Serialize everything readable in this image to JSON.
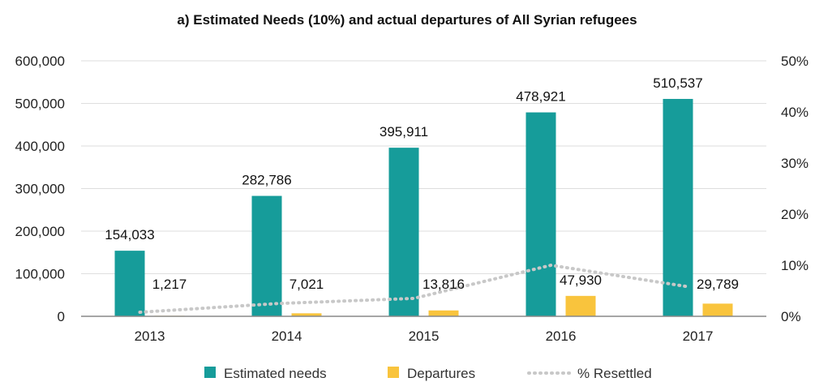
{
  "chart_data": {
    "type": "bar",
    "title": "a) Estimated Needs (10%) and actual departures of All Syrian refugees",
    "categories": [
      "2013",
      "2014",
      "2015",
      "2016",
      "2017"
    ],
    "series": [
      {
        "name": "Estimated needs",
        "type": "bar",
        "axis": "left",
        "color": "#169c9a",
        "values": [
          154033,
          282786,
          395911,
          478921,
          510537
        ],
        "labels": [
          "154,033",
          "282,786",
          "395,911",
          "478,921",
          "510,537"
        ]
      },
      {
        "name": "Departures",
        "type": "bar",
        "axis": "left",
        "color": "#f9c43d",
        "values": [
          1217,
          7021,
          13816,
          47930,
          29789
        ],
        "labels": [
          "1,217",
          "7,021",
          "13,816",
          "47,930",
          "29,789"
        ]
      },
      {
        "name": "% Resettled",
        "type": "line",
        "axis": "right",
        "color": "#c8c8c8",
        "values": [
          0.008,
          0.025,
          0.035,
          0.1,
          0.058
        ]
      }
    ],
    "y_left": {
      "ylim": [
        0,
        600000
      ],
      "ticks": [
        "0",
        "100,000",
        "200,000",
        "300,000",
        "400,000",
        "500,000",
        "600,000"
      ]
    },
    "y_right": {
      "ylim": [
        0,
        0.5
      ],
      "ticks": [
        "0%",
        "10%",
        "20%",
        "30%",
        "40%",
        "50%"
      ]
    },
    "grid": true,
    "legend_position": "bottom"
  }
}
